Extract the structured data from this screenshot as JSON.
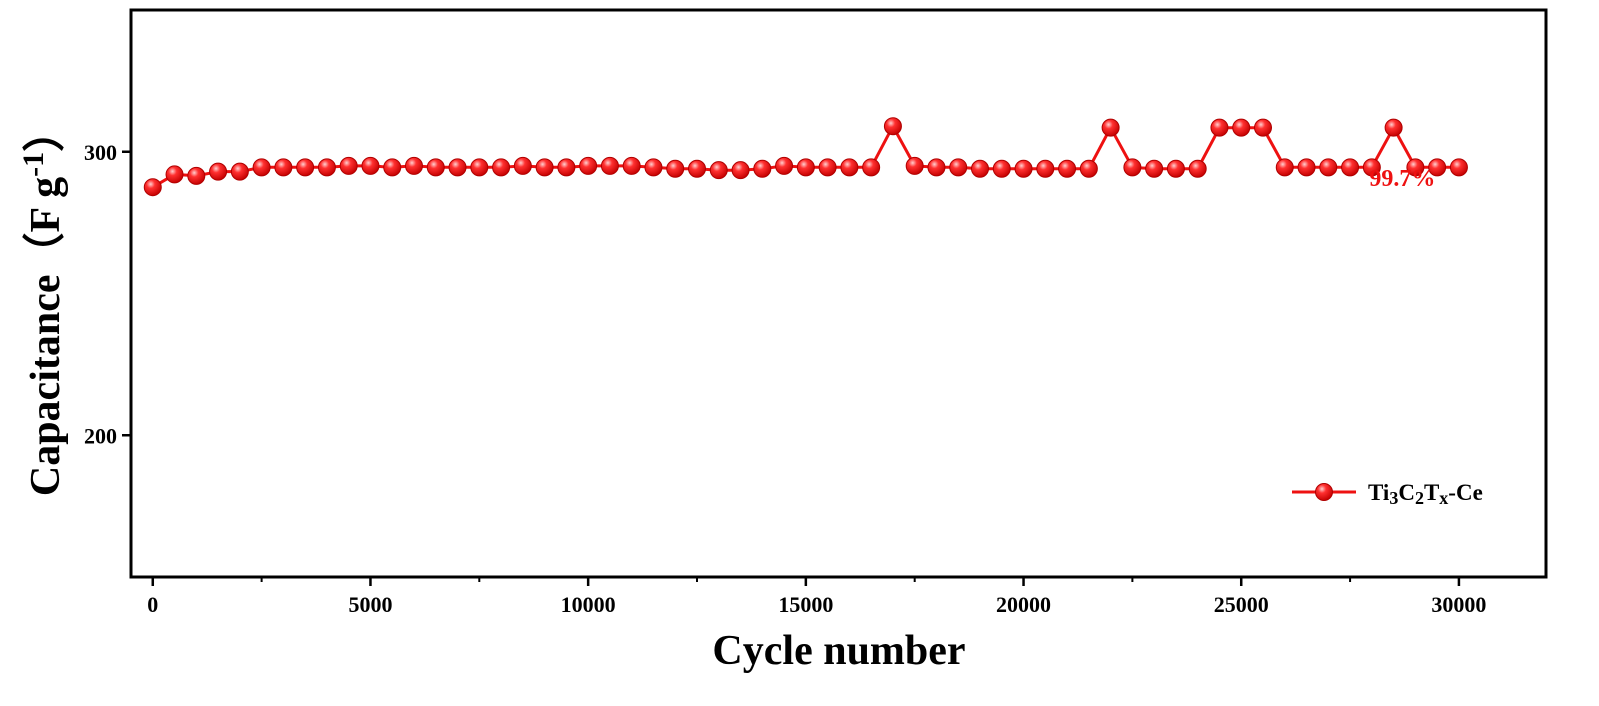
{
  "chart_data": {
    "type": "line",
    "title": "",
    "xlabel": "Cycle number",
    "ylabel_parts": {
      "main": "Capacitance",
      "open": "（",
      "unit": "F g",
      "exp": "-1",
      "close": "）"
    },
    "xlim": [
      -500,
      32000
    ],
    "ylim": [
      150,
      350
    ],
    "x_ticks": [
      0,
      5000,
      10000,
      15000,
      20000,
      25000,
      30000
    ],
    "x_tick_labels": [
      "0",
      "5000",
      "10000",
      "15000",
      "20000",
      "25000",
      "30000"
    ],
    "x_minor_ticks": [
      2500,
      7500,
      12500,
      17500,
      22500,
      27500
    ],
    "y_ticks": [
      200,
      300
    ],
    "y_tick_labels": [
      "200",
      "300"
    ],
    "grid": false,
    "legend_position": "lower-right",
    "colors": {
      "series": "#ee1111",
      "marker_highlight": "#ffb3b3",
      "axis": "#000000"
    },
    "series": [
      {
        "name": "Ti3C2Tx-Ce",
        "legend": {
          "base1": "Ti",
          "sub1": "3",
          "base2": "C",
          "sub2": "2",
          "base3": "T",
          "sub3": "x",
          "tail": "-Ce"
        },
        "marker": "circle",
        "x": [
          0,
          500,
          1000,
          1500,
          2000,
          2500,
          3000,
          3500,
          4000,
          4500,
          5000,
          5500,
          6000,
          6500,
          7000,
          7500,
          8000,
          8500,
          9000,
          9500,
          10000,
          10500,
          11000,
          11500,
          12000,
          12500,
          13000,
          13500,
          14000,
          14500,
          15000,
          15500,
          16000,
          16500,
          17000,
          17500,
          18000,
          18500,
          19000,
          19500,
          20000,
          20500,
          21000,
          21500,
          22000,
          22500,
          23000,
          23500,
          24000,
          24500,
          25000,
          25500,
          26000,
          26500,
          27000,
          27500,
          28000,
          28500,
          29000,
          29500,
          30000
        ],
        "values": [
          287.5,
          292,
          291.5,
          293,
          293,
          294.5,
          294.5,
          294.5,
          294.5,
          295,
          295,
          294.5,
          295,
          294.5,
          294.5,
          294.5,
          294.5,
          295,
          294.5,
          294.5,
          295,
          295,
          295,
          294.5,
          294,
          294,
          293.5,
          293.5,
          294,
          295,
          294.5,
          294.5,
          294.5,
          294.5,
          309,
          295,
          294.5,
          294.5,
          294,
          294,
          294,
          294,
          294,
          294,
          308.5,
          294.5,
          294,
          294,
          294,
          308.5,
          308.5,
          308.5,
          294.5,
          294.5,
          294.5,
          294.5,
          294.5,
          308.5,
          294.5,
          294.5,
          294.5
        ]
      }
    ],
    "annotations": [
      {
        "text": "99.7%",
        "x": 28700,
        "y": 288,
        "color": "#ee1111"
      }
    ]
  }
}
